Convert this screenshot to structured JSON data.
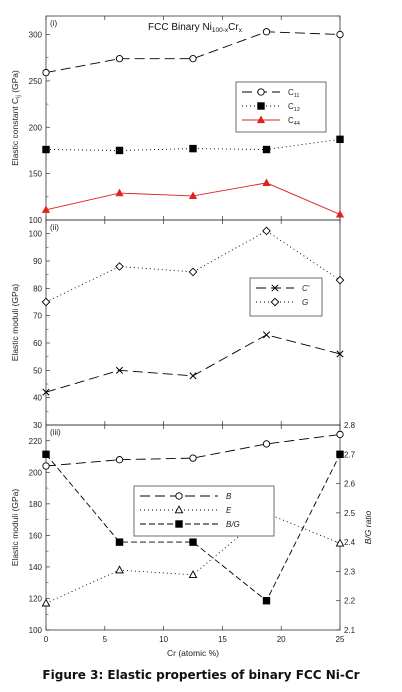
{
  "caption": "Figure 3: Elastic properties of binary FCC Ni-Cr",
  "chart_data": [
    {
      "type": "line",
      "panel_label": "(i)",
      "title": "FCC Binary Ni100-xCrx",
      "title_parts": {
        "base": "FCC Binary Ni",
        "sub1": "100-x",
        "mid": "Cr",
        "sub2": "x"
      },
      "ylabel": "Elastic constant Cij (GPa)",
      "ylabel_parts": {
        "base": "Elastic constant C",
        "sub": "ij",
        "unit": " (GPa)"
      },
      "ylim": [
        100,
        320
      ],
      "yticks": [
        100,
        150,
        200,
        250,
        300
      ],
      "xlim": [
        0,
        25
      ],
      "x": [
        0,
        6.25,
        12.5,
        18.75,
        25
      ],
      "legend_position": "right",
      "series": [
        {
          "name": "C11",
          "label": "C",
          "sub": "11",
          "values": [
            259,
            274,
            274,
            303,
            300
          ],
          "color": "#000000",
          "dash": "10,5",
          "marker": "circle-open"
        },
        {
          "name": "C12",
          "label": "C",
          "sub": "12",
          "values": [
            176,
            175,
            177,
            176,
            187
          ],
          "color": "#000000",
          "dash": "1,3",
          "marker": "square-filled"
        },
        {
          "name": "C44",
          "label": "C",
          "sub": "44",
          "values": [
            111,
            129,
            126,
            140,
            106
          ],
          "color": "#e0221d",
          "dash": "",
          "marker": "triangle-filled"
        }
      ]
    },
    {
      "type": "line",
      "panel_label": "(ii)",
      "ylabel": "Elastic moduli (GPa)",
      "ylim": [
        30,
        105
      ],
      "yticks": [
        30,
        40,
        50,
        60,
        70,
        80,
        90,
        100
      ],
      "xlim": [
        0,
        25
      ],
      "x": [
        0,
        6.25,
        12.5,
        18.75,
        25
      ],
      "legend_position": "right",
      "series": [
        {
          "name": "C'",
          "label": "C'",
          "values": [
            42,
            50,
            48,
            63,
            56
          ],
          "color": "#000000",
          "dash": "10,5",
          "marker": "x"
        },
        {
          "name": "G",
          "label": "G",
          "values": [
            75,
            88,
            86,
            101,
            83
          ],
          "color": "#000000",
          "dash": "1,3",
          "marker": "diamond-open"
        }
      ]
    },
    {
      "type": "line",
      "panel_label": "(iii)",
      "ylabel": "Elastic moduli (GPa)",
      "y2label": "B/G ratio",
      "ylim": [
        100,
        230
      ],
      "yticks": [
        100,
        120,
        140,
        160,
        180,
        200,
        220
      ],
      "y2lim": [
        2.1,
        2.8
      ],
      "y2ticks": [
        2.1,
        2.2,
        2.3,
        2.4,
        2.5,
        2.6,
        2.7,
        2.8
      ],
      "xlim": [
        0,
        25
      ],
      "xticks": [
        0,
        5,
        10,
        15,
        20,
        25
      ],
      "xlabel": "Cr (atomic %)",
      "x": [
        0,
        6.25,
        12.5,
        18.75,
        25
      ],
      "legend_position": "center",
      "series": [
        {
          "name": "B",
          "label": "B",
          "values": [
            204,
            208,
            209,
            218,
            224
          ],
          "color": "#000000",
          "dash": "10,5",
          "marker": "circle-open",
          "axis": "left"
        },
        {
          "name": "E",
          "label": "E",
          "values": [
            117,
            138,
            135,
            174,
            155
          ],
          "color": "#000000",
          "dash": "1,3",
          "marker": "triangle-open",
          "axis": "left"
        },
        {
          "name": "B/G",
          "label": "B/G",
          "values": [
            2.7,
            2.4,
            2.4,
            2.2,
            2.7
          ],
          "color": "#000000",
          "dash": "6,3",
          "marker": "square-filled",
          "axis": "right"
        }
      ]
    }
  ]
}
